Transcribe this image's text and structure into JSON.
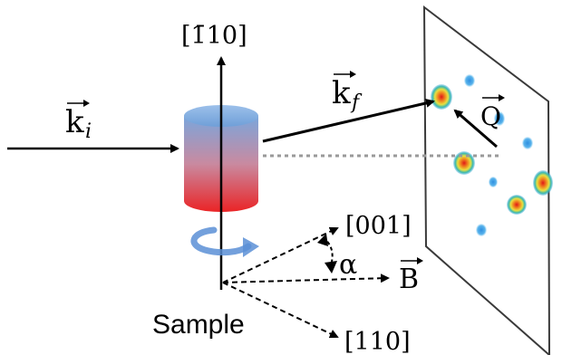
{
  "labels": {
    "axis_top": "[1̄10]",
    "k_incident": "k",
    "k_incident_sub": "i",
    "k_final": "k",
    "k_final_sub": "f",
    "q_vector": "Q",
    "axis_001": "[001]",
    "angle": "α",
    "field": "B",
    "axis_110": "[110]",
    "sample": "Sample"
  },
  "colors": {
    "cylinder_top": "#6f9fd8",
    "cylinder_bottom": "#e8282a",
    "rotation_arrow": "#5b8fd6",
    "arrow": "#000000",
    "beam_dotted": "#a0a0a0",
    "detector_edge": "#333333"
  },
  "icons": {
    "rotation": "curved-rotation-arrow-icon"
  }
}
